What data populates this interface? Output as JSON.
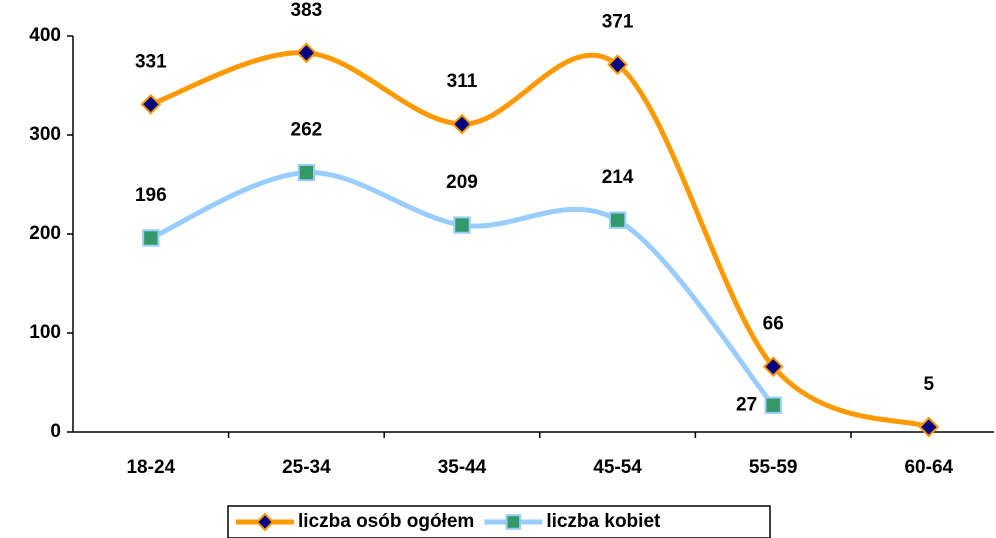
{
  "chart_data": {
    "type": "line",
    "categories": [
      "18-24",
      "25-34",
      "35-44",
      "45-54",
      "55-59",
      "60-64"
    ],
    "series": [
      {
        "name": "liczba osób ogółem",
        "color": "#FF9900",
        "marker_color": "#000080",
        "marker": "diamond",
        "values": [
          331,
          383,
          311,
          371,
          66,
          5
        ]
      },
      {
        "name": "liczba kobiet",
        "color": "#99CCFF",
        "marker_color": "#339966",
        "marker": "square",
        "values": [
          196,
          262,
          209,
          214,
          27,
          null
        ]
      }
    ],
    "ylim": [
      0,
      400
    ],
    "yticks": [
      0,
      100,
      200,
      300,
      400
    ],
    "grid": false,
    "smooth": true,
    "legend": "bottom"
  }
}
